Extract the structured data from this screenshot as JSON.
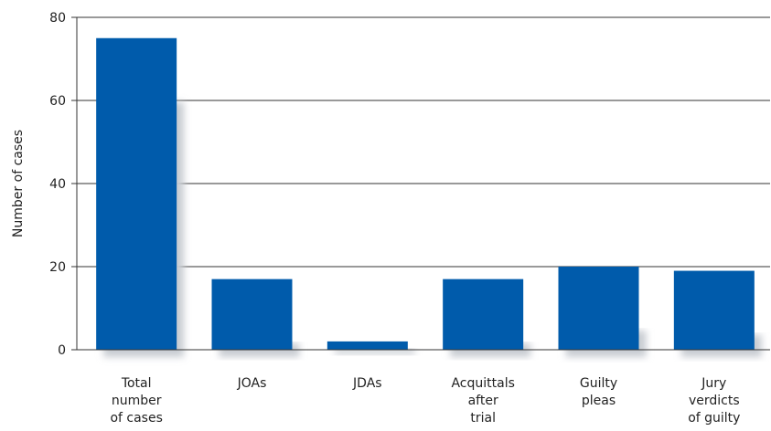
{
  "chart_data": {
    "type": "bar",
    "ylabel": "Number of cases",
    "xlabel": "",
    "ylim": [
      0,
      80
    ],
    "yticks": [
      0,
      20,
      40,
      60,
      80
    ],
    "grid": true,
    "categories": [
      [
        "Total",
        "number",
        "of cases"
      ],
      [
        "JOAs"
      ],
      [
        "JDAs"
      ],
      [
        "Acquittals",
        "after",
        "trial"
      ],
      [
        "Guilty",
        "pleas"
      ],
      [
        "Jury",
        "verdicts",
        "of guilty"
      ]
    ],
    "values": [
      75,
      17,
      2,
      17,
      20,
      19
    ],
    "bar_color": "#005bab",
    "shadow_color": "#c8ccd2"
  }
}
